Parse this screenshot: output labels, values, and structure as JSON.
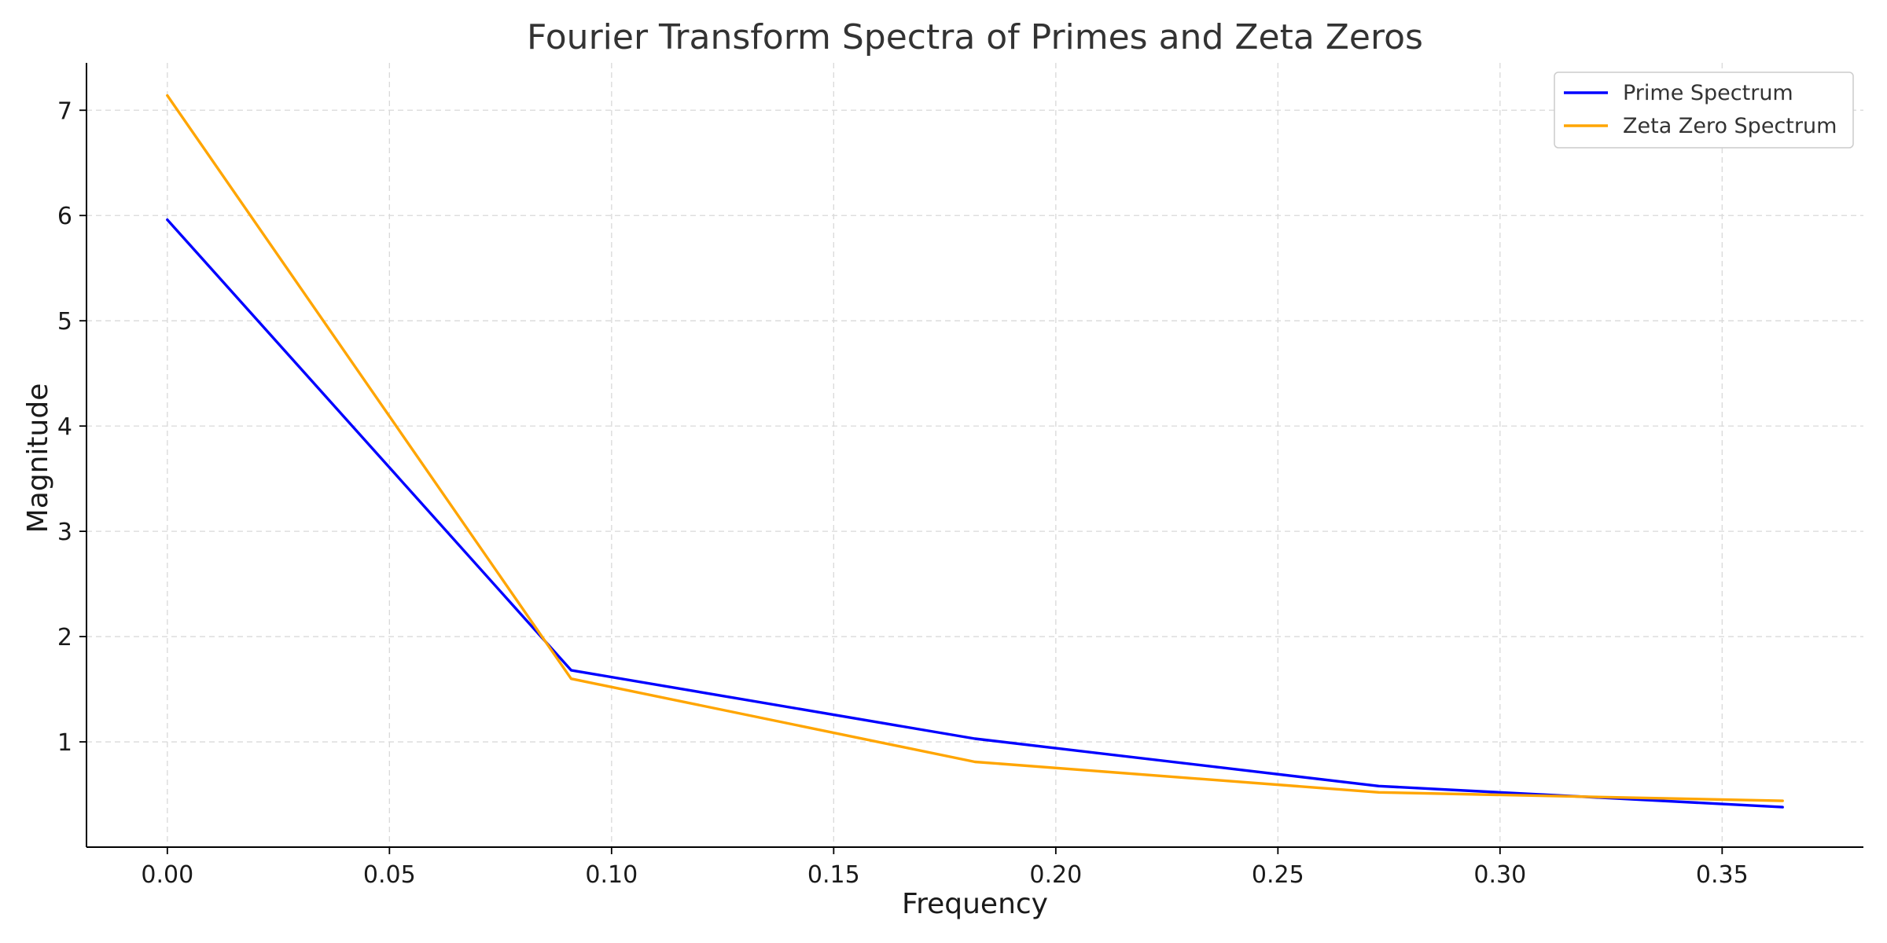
{
  "chart_data": {
    "type": "line",
    "title": "Fourier Transform Spectra of Primes and Zeta Zeros",
    "xlabel": "Frequency",
    "ylabel": "Magnitude",
    "xlim": [
      -0.0182,
      0.3818
    ],
    "ylim": [
      0.0,
      7.45
    ],
    "xticks": [
      0.0,
      0.05,
      0.1,
      0.15,
      0.2,
      0.25,
      0.3,
      0.35
    ],
    "xtick_labels": [
      "0.00",
      "0.05",
      "0.10",
      "0.15",
      "0.20",
      "0.25",
      "0.30",
      "0.35"
    ],
    "yticks": [
      1,
      2,
      3,
      4,
      5,
      6,
      7
    ],
    "ytick_labels": [
      "1",
      "2",
      "3",
      "4",
      "5",
      "6",
      "7"
    ],
    "grid": true,
    "legend_position": "top-right",
    "x": [
      0.0,
      0.0909,
      0.1818,
      0.2727,
      0.3636
    ],
    "series": [
      {
        "name": "Prime Spectrum",
        "color": "#0000ff",
        "values": [
          5.96,
          1.68,
          1.03,
          0.58,
          0.38
        ]
      },
      {
        "name": "Zeta Zero Spectrum",
        "color": "#ffa500",
        "values": [
          7.14,
          1.6,
          0.81,
          0.52,
          0.44
        ]
      }
    ]
  }
}
